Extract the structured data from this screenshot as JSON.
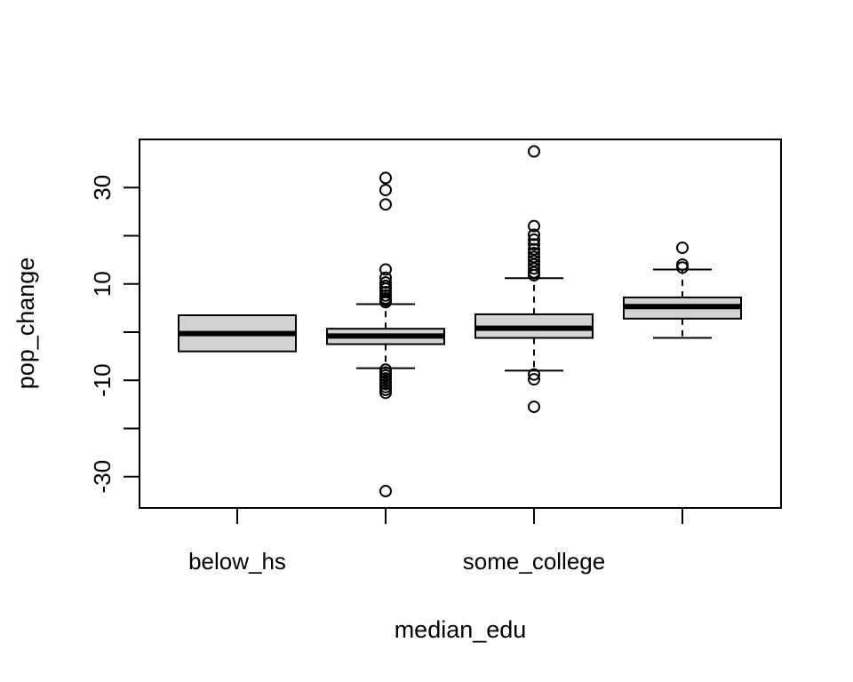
{
  "chart_data": {
    "type": "boxplot",
    "xlabel": "median_edu",
    "ylabel": "pop_change",
    "ylim": [
      -36.5,
      40
    ],
    "y_ticks": [
      -30,
      -20,
      -10,
      0,
      10,
      20,
      30
    ],
    "y_tick_labels": [
      "-30",
      "",
      "-10",
      "",
      "10",
      "",
      "30"
    ],
    "categories": [
      "below_hs",
      "",
      "some_college",
      ""
    ],
    "colors": {
      "box_fill": "#d3d3d3",
      "stroke": "#000000"
    },
    "boxes": [
      {
        "whisker_low": -4,
        "q1": -4,
        "median": -0.3,
        "q3": 3.5,
        "whisker_high": 3.5,
        "outliers": []
      },
      {
        "whisker_low": -7.5,
        "q1": -2.5,
        "median": -0.8,
        "q3": 0.7,
        "whisker_high": 5.8,
        "outliers": [
          32,
          29.5,
          26.5,
          13,
          11.3,
          10.3,
          9.6,
          9,
          8.3,
          7.6,
          7,
          6.6,
          6.2,
          -7.8,
          -8.4,
          -9,
          -9.6,
          -10.2,
          -10.8,
          -11.4,
          -12,
          -12.6,
          -33
        ]
      },
      {
        "whisker_low": -8,
        "q1": -1.2,
        "median": 0.8,
        "q3": 3.7,
        "whisker_high": 11.2,
        "outliers": [
          37.5,
          22,
          20.2,
          19.2,
          18.2,
          17.2,
          16.4,
          15.6,
          14.8,
          14,
          13.2,
          12.4,
          11.8,
          -8.8,
          -9.8,
          -15.5
        ]
      },
      {
        "whisker_low": -1.2,
        "q1": 2.8,
        "median": 5.3,
        "q3": 7.2,
        "whisker_high": 13,
        "outliers": [
          17.5,
          14,
          13.4
        ]
      }
    ]
  }
}
